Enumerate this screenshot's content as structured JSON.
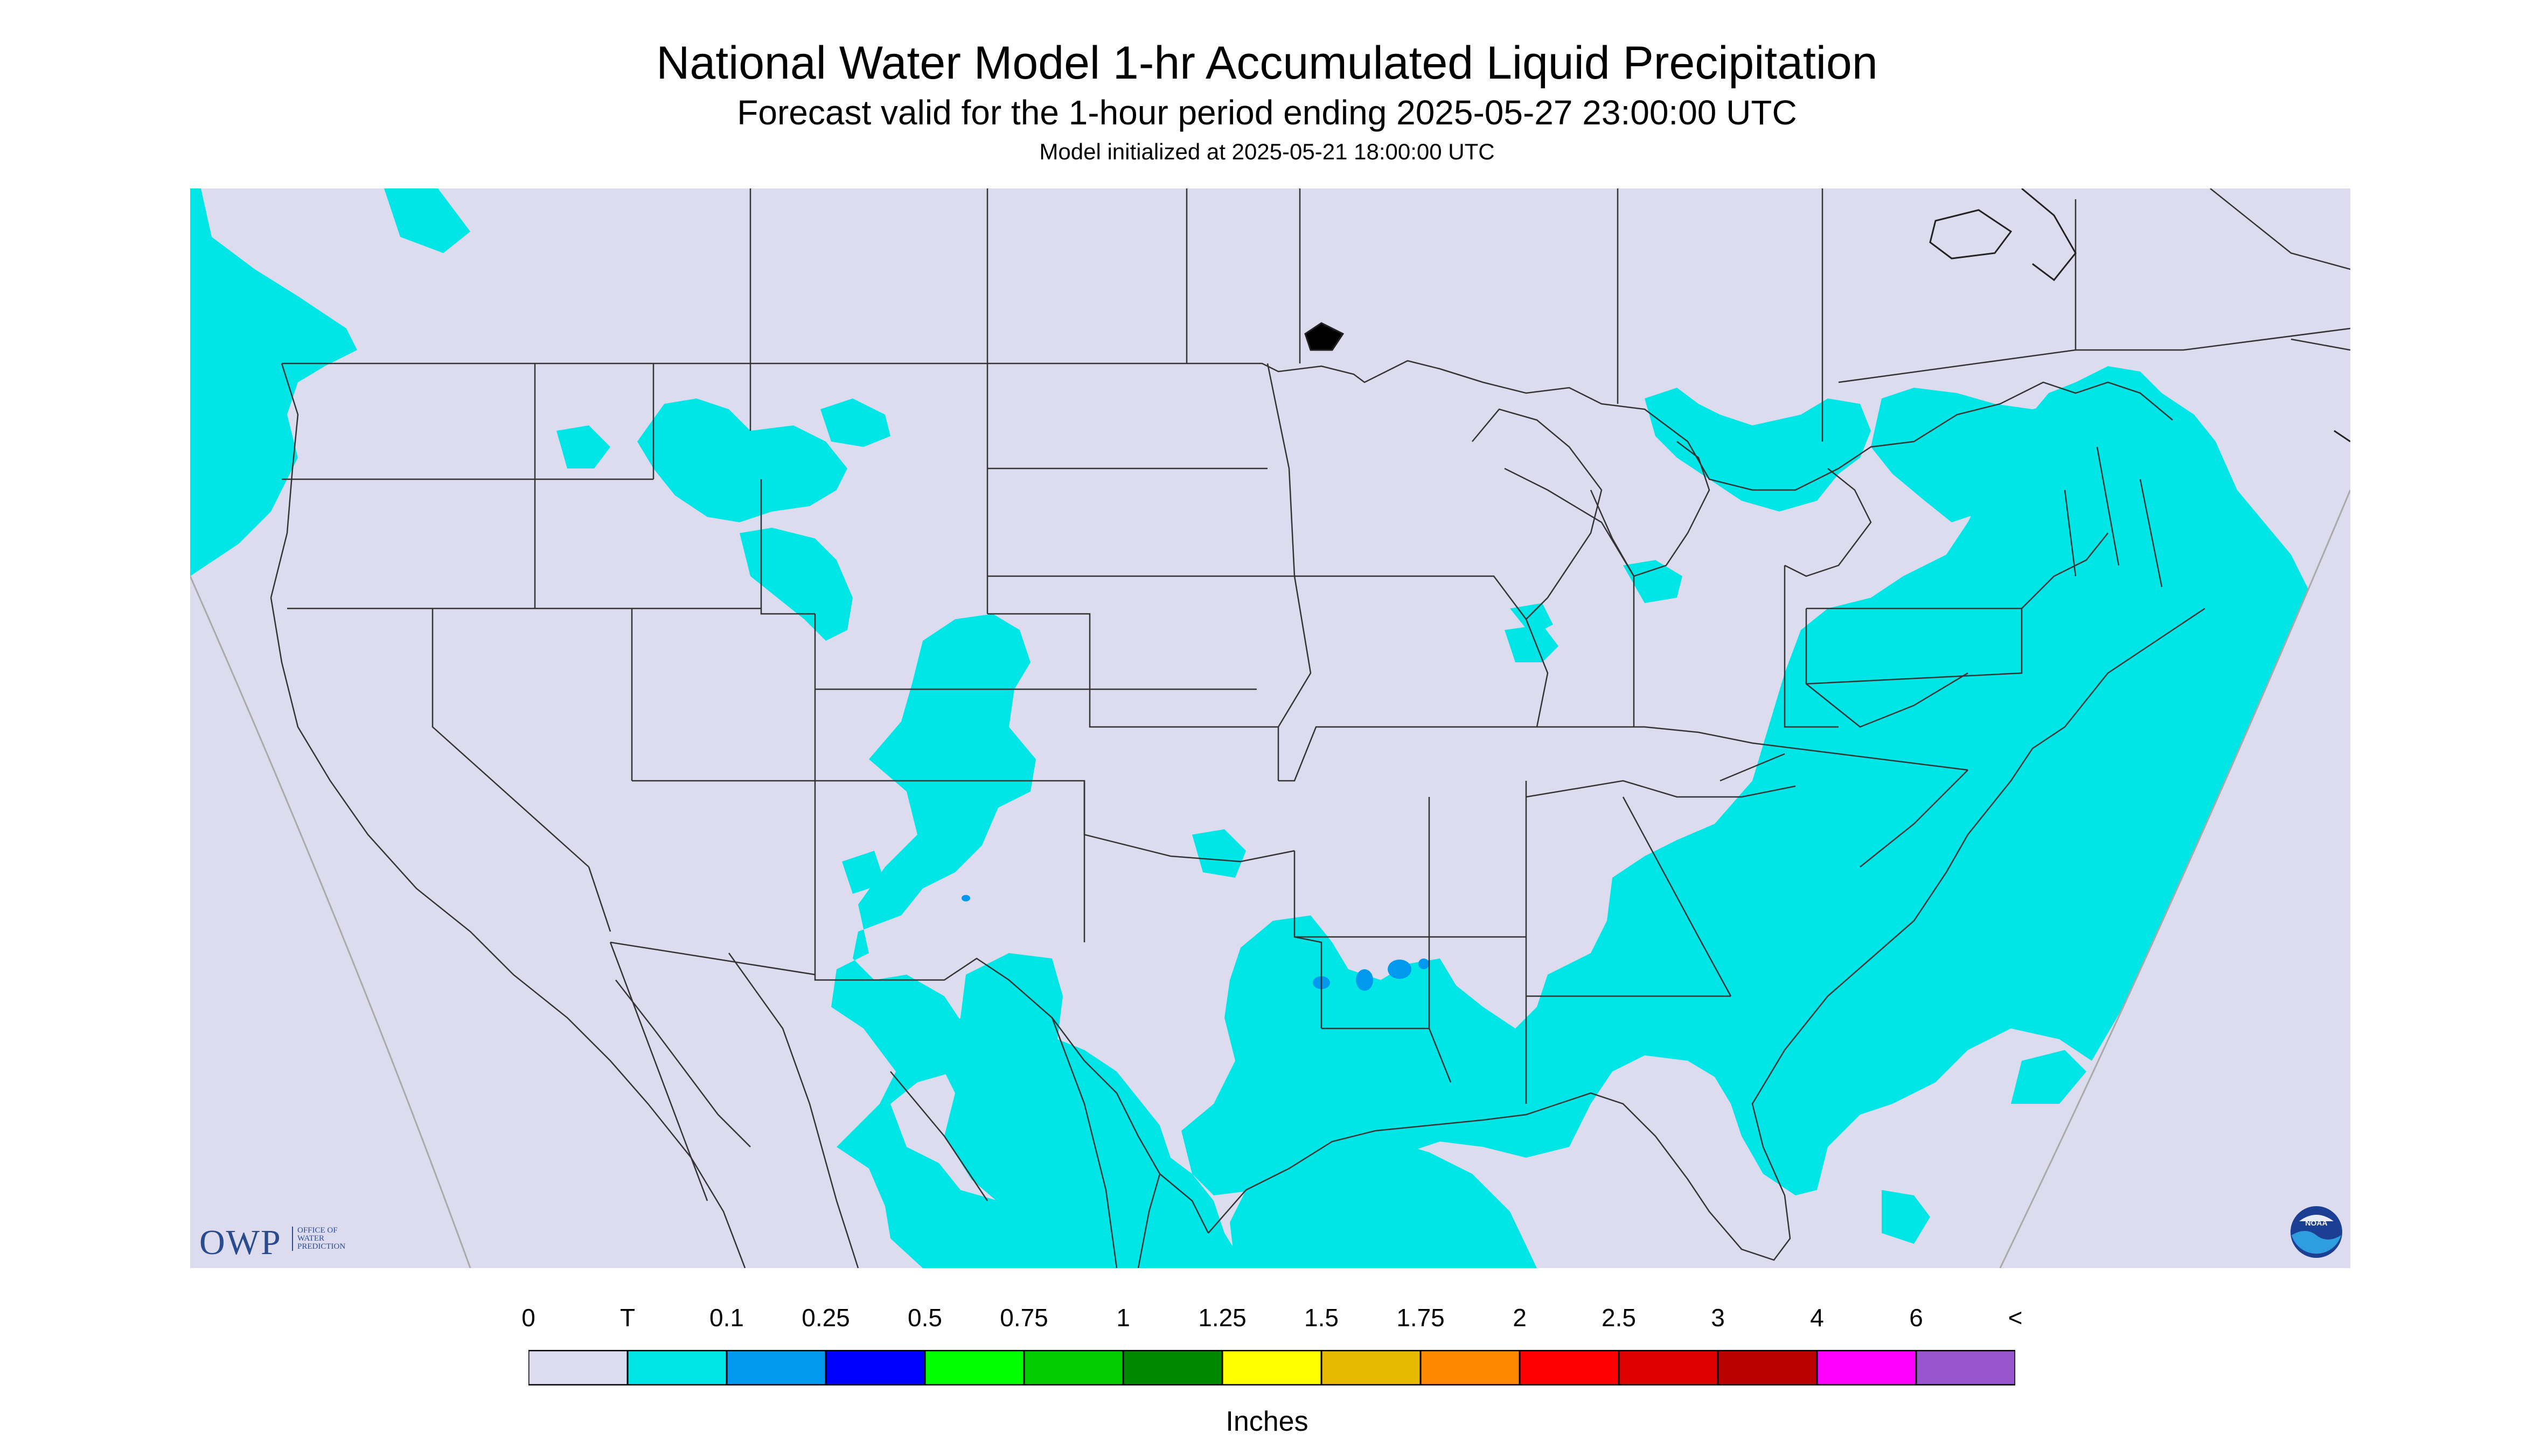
{
  "header": {
    "title": "National Water Model 1-hr Accumulated Liquid Precipitation",
    "subtitle": "Forecast valid for the 1-hour period ending 2025-05-27 23:00:00 UTC",
    "init_line": "Model initialized at 2025-05-21 18:00:00 UTC"
  },
  "logos": {
    "owp_letters": "OWP",
    "owp_text_line1": "OFFICE OF",
    "owp_text_line2": "WATER",
    "owp_text_line3": "PREDICTION",
    "noaa_text": "NOAA"
  },
  "colors": {
    "background_no_precip": "#dcdcee",
    "trace": "#00e5e5",
    "light": "#0099ee",
    "border": "#333333",
    "ocean_mask": "#dcdcee"
  },
  "legend": {
    "unit": "Inches",
    "ticks": [
      "0",
      "T",
      "0.1",
      "0.25",
      "0.5",
      "0.75",
      "1",
      "1.25",
      "1.5",
      "1.75",
      "2",
      "2.5",
      "3",
      "4",
      "6",
      "<"
    ],
    "colors": [
      "#dcdcee",
      "#00e5e5",
      "#0099ee",
      "#0000ff",
      "#00ff00",
      "#00cc00",
      "#008800",
      "#ffff00",
      "#e6b800",
      "#ff8800",
      "#ff0000",
      "#dd0000",
      "#bb0000",
      "#ff00ff",
      "#9955cc"
    ]
  }
}
